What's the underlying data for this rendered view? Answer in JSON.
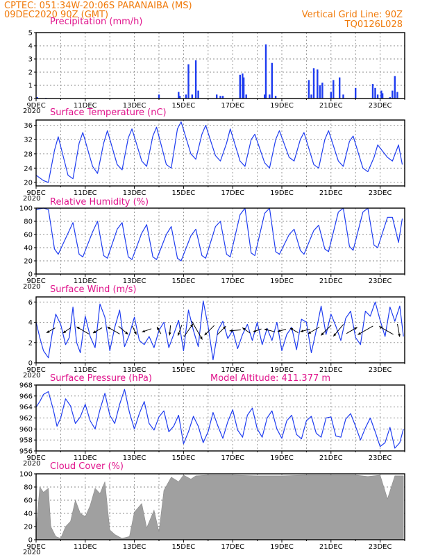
{
  "header": {
    "line1": "CPTEC:   051:34W-20:06S   PARANAIBA (MS)",
    "line2": "09DEC2020 90Z (GMT)",
    "grid_note": "Vertical Grid Line: 90Z",
    "code": "TQ0126L028"
  },
  "colors": {
    "header": "#f07a0a",
    "panel_title": "#e0148c",
    "line": "#1e3cf0",
    "cloud": "#a0a0a0",
    "arrow": "#000000"
  },
  "x_ticks": [
    "9DEC",
    "11DEC",
    "13DEC",
    "15DEC",
    "17DEC",
    "19DEC",
    "21DEC",
    "23DEC"
  ],
  "x_corner": "2020",
  "chart_data": [
    {
      "id": "precip",
      "type": "bar",
      "title": "Precipitation  (mm/h)",
      "xlabel": "",
      "ylabel": "",
      "ylim": [
        0,
        5
      ],
      "yticks": [
        0,
        1,
        2,
        3,
        4,
        5
      ],
      "grid": true,
      "x_unit": "days since 9DEC 00Z",
      "x": [
        0.05,
        0.4,
        5.0,
        5.8,
        5.85,
        6.1,
        6.2,
        6.35,
        6.5,
        6.6,
        7.35,
        7.5,
        7.6,
        8.3,
        8.4,
        8.45,
        8.55,
        9.3,
        9.35,
        9.5,
        9.6,
        9.75,
        11.1,
        11.2,
        11.3,
        11.45,
        11.55,
        11.65,
        12.0,
        12.1,
        12.35,
        12.5,
        13.0,
        13.7,
        13.8,
        13.9,
        14.05,
        14.1,
        14.4,
        14.5,
        14.6,
        14.7
      ],
      "y": [
        0.1,
        0.05,
        0.3,
        0.5,
        0.2,
        0.3,
        2.6,
        0.3,
        2.9,
        0.6,
        0.3,
        0.2,
        0.2,
        1.8,
        1.9,
        1.6,
        0.3,
        0.3,
        4.1,
        0.3,
        2.7,
        0.2,
        1.4,
        0.3,
        2.3,
        2.2,
        1.0,
        1.2,
        0.5,
        1.4,
        1.6,
        0.3,
        0.8,
        1.1,
        0.8,
        0.3,
        0.6,
        0.4,
        0.1,
        0.6,
        1.7,
        0.5
      ]
    },
    {
      "id": "temp",
      "type": "line",
      "title": "Surface Temperature (nC)",
      "xlabel": "",
      "ylabel": "",
      "ylim": [
        19,
        37.5
      ],
      "yticks": [
        20,
        24,
        28,
        32,
        36
      ],
      "grid": true,
      "x_unit": "days since 9DEC 00Z",
      "x": [
        0,
        0.3,
        0.5,
        0.75,
        0.9,
        1.3,
        1.5,
        1.75,
        1.9,
        2.3,
        2.5,
        2.75,
        2.9,
        3.3,
        3.5,
        3.75,
        3.9,
        4.3,
        4.5,
        4.75,
        4.9,
        5.3,
        5.5,
        5.75,
        5.9,
        6.3,
        6.5,
        6.75,
        6.9,
        7.3,
        7.5,
        7.75,
        7.9,
        8.3,
        8.5,
        8.75,
        8.9,
        9.3,
        9.5,
        9.75,
        9.9,
        10.3,
        10.5,
        10.75,
        10.9,
        11.3,
        11.5,
        11.75,
        11.9,
        12.3,
        12.5,
        12.75,
        12.9,
        13.3,
        13.5,
        13.75,
        13.9,
        14.3,
        14.5,
        14.75,
        14.9
      ],
      "y": [
        22,
        20.5,
        20,
        29,
        32.8,
        22,
        21,
        31,
        34,
        24.5,
        22.5,
        31,
        34.5,
        25,
        23.5,
        32.5,
        35,
        26,
        24.5,
        33,
        35.5,
        25,
        24,
        35,
        37,
        28,
        26.5,
        33.5,
        36,
        27.5,
        26,
        31,
        35,
        26,
        24.5,
        32,
        33.5,
        25.5,
        24,
        32,
        34.5,
        27,
        26,
        32,
        34,
        25,
        24,
        32,
        34.5,
        26,
        24.5,
        31.5,
        33,
        24,
        23,
        27,
        30.5,
        27,
        26,
        30.5,
        25
      ]
    },
    {
      "id": "rh",
      "type": "line",
      "title": "Relative Humidity (%)",
      "xlabel": "",
      "ylabel": "",
      "ylim": [
        0,
        100
      ],
      "yticks": [
        0,
        20,
        40,
        60,
        80,
        100
      ],
      "grid": true,
      "x_unit": "days since 9DEC 00Z",
      "x": [
        0,
        0.3,
        0.5,
        0.75,
        0.9,
        1.3,
        1.5,
        1.75,
        1.9,
        2.3,
        2.5,
        2.75,
        2.9,
        3.3,
        3.5,
        3.75,
        3.9,
        4.3,
        4.5,
        4.75,
        4.9,
        5.3,
        5.5,
        5.75,
        5.9,
        6.3,
        6.5,
        6.75,
        6.9,
        7.3,
        7.5,
        7.75,
        7.9,
        8.3,
        8.5,
        8.75,
        8.9,
        9.3,
        9.5,
        9.75,
        9.9,
        10.3,
        10.5,
        10.75,
        10.9,
        11.3,
        11.5,
        11.75,
        11.9,
        12.3,
        12.5,
        12.75,
        12.9,
        13.3,
        13.5,
        13.75,
        13.9,
        14.3,
        14.5,
        14.75,
        14.9
      ],
      "y": [
        98,
        100,
        98,
        38,
        30,
        62,
        78,
        30,
        26,
        64,
        80,
        28,
        24,
        68,
        78,
        26,
        22,
        62,
        75,
        26,
        22,
        60,
        72,
        24,
        20,
        58,
        68,
        28,
        24,
        72,
        80,
        30,
        26,
        90,
        100,
        32,
        28,
        92,
        100,
        34,
        30,
        60,
        68,
        36,
        30,
        66,
        74,
        38,
        34,
        94,
        100,
        42,
        36,
        94,
        100,
        44,
        40,
        86,
        86,
        48,
        84
      ]
    },
    {
      "id": "wind",
      "type": "line",
      "title": "Surface Wind  (m/s)",
      "xlabel": "",
      "ylabel": "",
      "ylim": [
        0,
        6.5
      ],
      "yticks": [
        0,
        2,
        4,
        6
      ],
      "grid": true,
      "x_unit": "days since 9DEC 00Z",
      "x": [
        0,
        0.15,
        0.3,
        0.5,
        0.65,
        0.8,
        1.0,
        1.2,
        1.35,
        1.5,
        1.65,
        1.8,
        2.0,
        2.2,
        2.4,
        2.6,
        2.8,
        3.0,
        3.2,
        3.4,
        3.6,
        3.8,
        4.0,
        4.2,
        4.4,
        4.6,
        4.8,
        5.0,
        5.2,
        5.4,
        5.6,
        5.8,
        6.0,
        6.2,
        6.4,
        6.6,
        6.8,
        7.0,
        7.2,
        7.4,
        7.6,
        7.8,
        8.0,
        8.2,
        8.4,
        8.6,
        8.8,
        9.0,
        9.2,
        9.4,
        9.6,
        9.8,
        10.0,
        10.2,
        10.4,
        10.6,
        10.8,
        11.0,
        11.2,
        11.4,
        11.6,
        11.8,
        12.0,
        12.2,
        12.4,
        12.6,
        12.8,
        13.0,
        13.2,
        13.4,
        13.6,
        13.8,
        14.0,
        14.2,
        14.4,
        14.6,
        14.8,
        14.95
      ],
      "y": [
        4.0,
        2.5,
        1.2,
        0.5,
        2.8,
        4.8,
        3.8,
        1.8,
        2.5,
        5.5,
        2.0,
        1.0,
        4.6,
        2.6,
        1.5,
        5.8,
        4.5,
        1.2,
        3.5,
        5.2,
        1.6,
        2.8,
        4.5,
        2.2,
        1.8,
        2.6,
        1.5,
        3.2,
        4.0,
        1.5,
        2.8,
        4.2,
        1.2,
        5.2,
        3.2,
        1.6,
        6.1,
        3.6,
        0.3,
        3.2,
        4.1,
        2.4,
        3.2,
        1.4,
        2.8,
        3.8,
        2.2,
        4.0,
        1.8,
        3.4,
        2.2,
        4.0,
        1.2,
        2.8,
        3.5,
        1.3,
        4.3,
        4.0,
        1.0,
        3.2,
        5.6,
        2.8,
        4.8,
        3.6,
        2.2,
        4.4,
        5.1,
        2.5,
        1.8,
        5.1,
        4.6,
        6.0,
        4.2,
        2.6,
        5.5,
        4.1,
        5.6,
        2.6
      ]
    },
    {
      "id": "pressure",
      "type": "line",
      "title": "Surface Pressure (hPa)",
      "annotation": "Model Altitude: 411.377 m",
      "xlabel": "",
      "ylabel": "",
      "ylim": [
        956,
        968
      ],
      "yticks": [
        956,
        958,
        960,
        962,
        964,
        966,
        968
      ],
      "grid": true,
      "x_unit": "days since 9DEC 00Z",
      "x": [
        0,
        0.15,
        0.3,
        0.5,
        0.7,
        0.85,
        1.0,
        1.2,
        1.4,
        1.6,
        1.8,
        2.0,
        2.2,
        2.4,
        2.6,
        2.8,
        3.0,
        3.2,
        3.4,
        3.6,
        3.8,
        4.0,
        4.2,
        4.4,
        4.6,
        4.8,
        5.0,
        5.2,
        5.4,
        5.6,
        5.8,
        6.0,
        6.2,
        6.4,
        6.6,
        6.8,
        7.0,
        7.2,
        7.4,
        7.6,
        7.8,
        8.0,
        8.2,
        8.4,
        8.6,
        8.8,
        9.0,
        9.2,
        9.4,
        9.6,
        9.8,
        10.0,
        10.2,
        10.4,
        10.6,
        10.8,
        11.0,
        11.2,
        11.4,
        11.6,
        11.8,
        12.0,
        12.2,
        12.4,
        12.6,
        12.8,
        13.0,
        13.2,
        13.4,
        13.6,
        13.8,
        14.0,
        14.2,
        14.4,
        14.6,
        14.8,
        14.95
      ],
      "y": [
        964.0,
        965.0,
        966.3,
        966.8,
        963.5,
        960.5,
        962.0,
        965.5,
        964.2,
        961.0,
        962.2,
        964.5,
        961.5,
        960.0,
        963.5,
        966.5,
        962.5,
        961.0,
        964.5,
        967.2,
        963.0,
        960.0,
        962.8,
        965.0,
        961.0,
        959.8,
        962.2,
        963.3,
        959.5,
        960.5,
        962.5,
        957.3,
        959.5,
        962.3,
        960.5,
        957.5,
        959.5,
        963.0,
        960.5,
        958.3,
        961.3,
        963.5,
        959.8,
        958.5,
        962.5,
        963.8,
        960.0,
        958.5,
        962.0,
        963.3,
        960.0,
        958.3,
        961.5,
        962.5,
        959.0,
        958.2,
        961.5,
        962.3,
        959.2,
        958.5,
        962.0,
        962.2,
        958.7,
        958.5,
        961.8,
        962.8,
        960.5,
        958.0,
        960.2,
        962.0,
        959.5,
        956.8,
        957.5,
        960.3,
        956.5,
        957.5,
        960.0
      ]
    },
    {
      "id": "cloud",
      "type": "area",
      "title": "Cloud Cover (%)",
      "xlabel": "",
      "ylabel": "",
      "ylim": [
        0,
        100
      ],
      "yticks": [
        0,
        20,
        40,
        60,
        80,
        100
      ],
      "grid": true,
      "x_unit": "days since 9DEC 00Z",
      "x": [
        0,
        0.15,
        0.3,
        0.5,
        0.6,
        0.8,
        1.0,
        1.2,
        1.4,
        1.6,
        1.8,
        2.0,
        2.2,
        2.4,
        2.6,
        2.8,
        3.0,
        3.2,
        3.5,
        3.8,
        4.0,
        4.3,
        4.5,
        4.8,
        5.0,
        5.2,
        5.5,
        5.8,
        6.0,
        6.3,
        6.5,
        7.0,
        8.0,
        9.0,
        10.0,
        11.0,
        12.0,
        13.0,
        13.5,
        14.0,
        14.3,
        14.6,
        14.95
      ],
      "y": [
        15,
        80,
        72,
        78,
        20,
        5,
        2,
        20,
        28,
        60,
        40,
        35,
        52,
        78,
        70,
        88,
        15,
        8,
        2,
        5,
        42,
        55,
        18,
        45,
        12,
        75,
        95,
        88,
        98,
        92,
        97,
        98,
        98,
        97,
        97,
        98,
        98,
        98,
        96,
        98,
        62,
        97,
        97
      ]
    }
  ],
  "wind_vectors": {
    "unit": "direction in degrees toward which the arrow points, speed in m/s",
    "x": [
      0.6,
      1.25,
      1.9,
      2.5,
      3.15,
      3.55,
      4.0,
      4.5,
      5.0,
      5.45,
      5.85,
      6.2,
      6.55,
      7.05,
      7.55,
      8.1,
      8.55,
      9.0,
      9.5,
      10.0,
      10.5,
      10.95,
      11.3,
      11.8,
      12.3,
      12.85,
      13.4,
      14.25,
      14.75
    ],
    "dir": [
      240,
      235,
      300,
      240,
      300,
      130,
      155,
      250,
      330,
      185,
      200,
      35,
      150,
      225,
      45,
      265,
      305,
      250,
      285,
      255,
      300,
      255,
      240,
      225,
      220,
      60,
      240,
      300,
      170
    ],
    "speed": [
      1.6,
      1.5,
      2.3,
      1.7,
      2.3,
      2.0,
      1.5,
      1.6,
      1.3,
      1.6,
      1.8,
      2.5,
      3.4,
      2.2,
      1.9,
      1.8,
      1.5,
      1.4,
      1.7,
      1.4,
      1.5,
      1.6,
      2.1,
      2.3,
      2.5,
      2.0,
      2.8,
      2.6,
      2.1
    ]
  }
}
